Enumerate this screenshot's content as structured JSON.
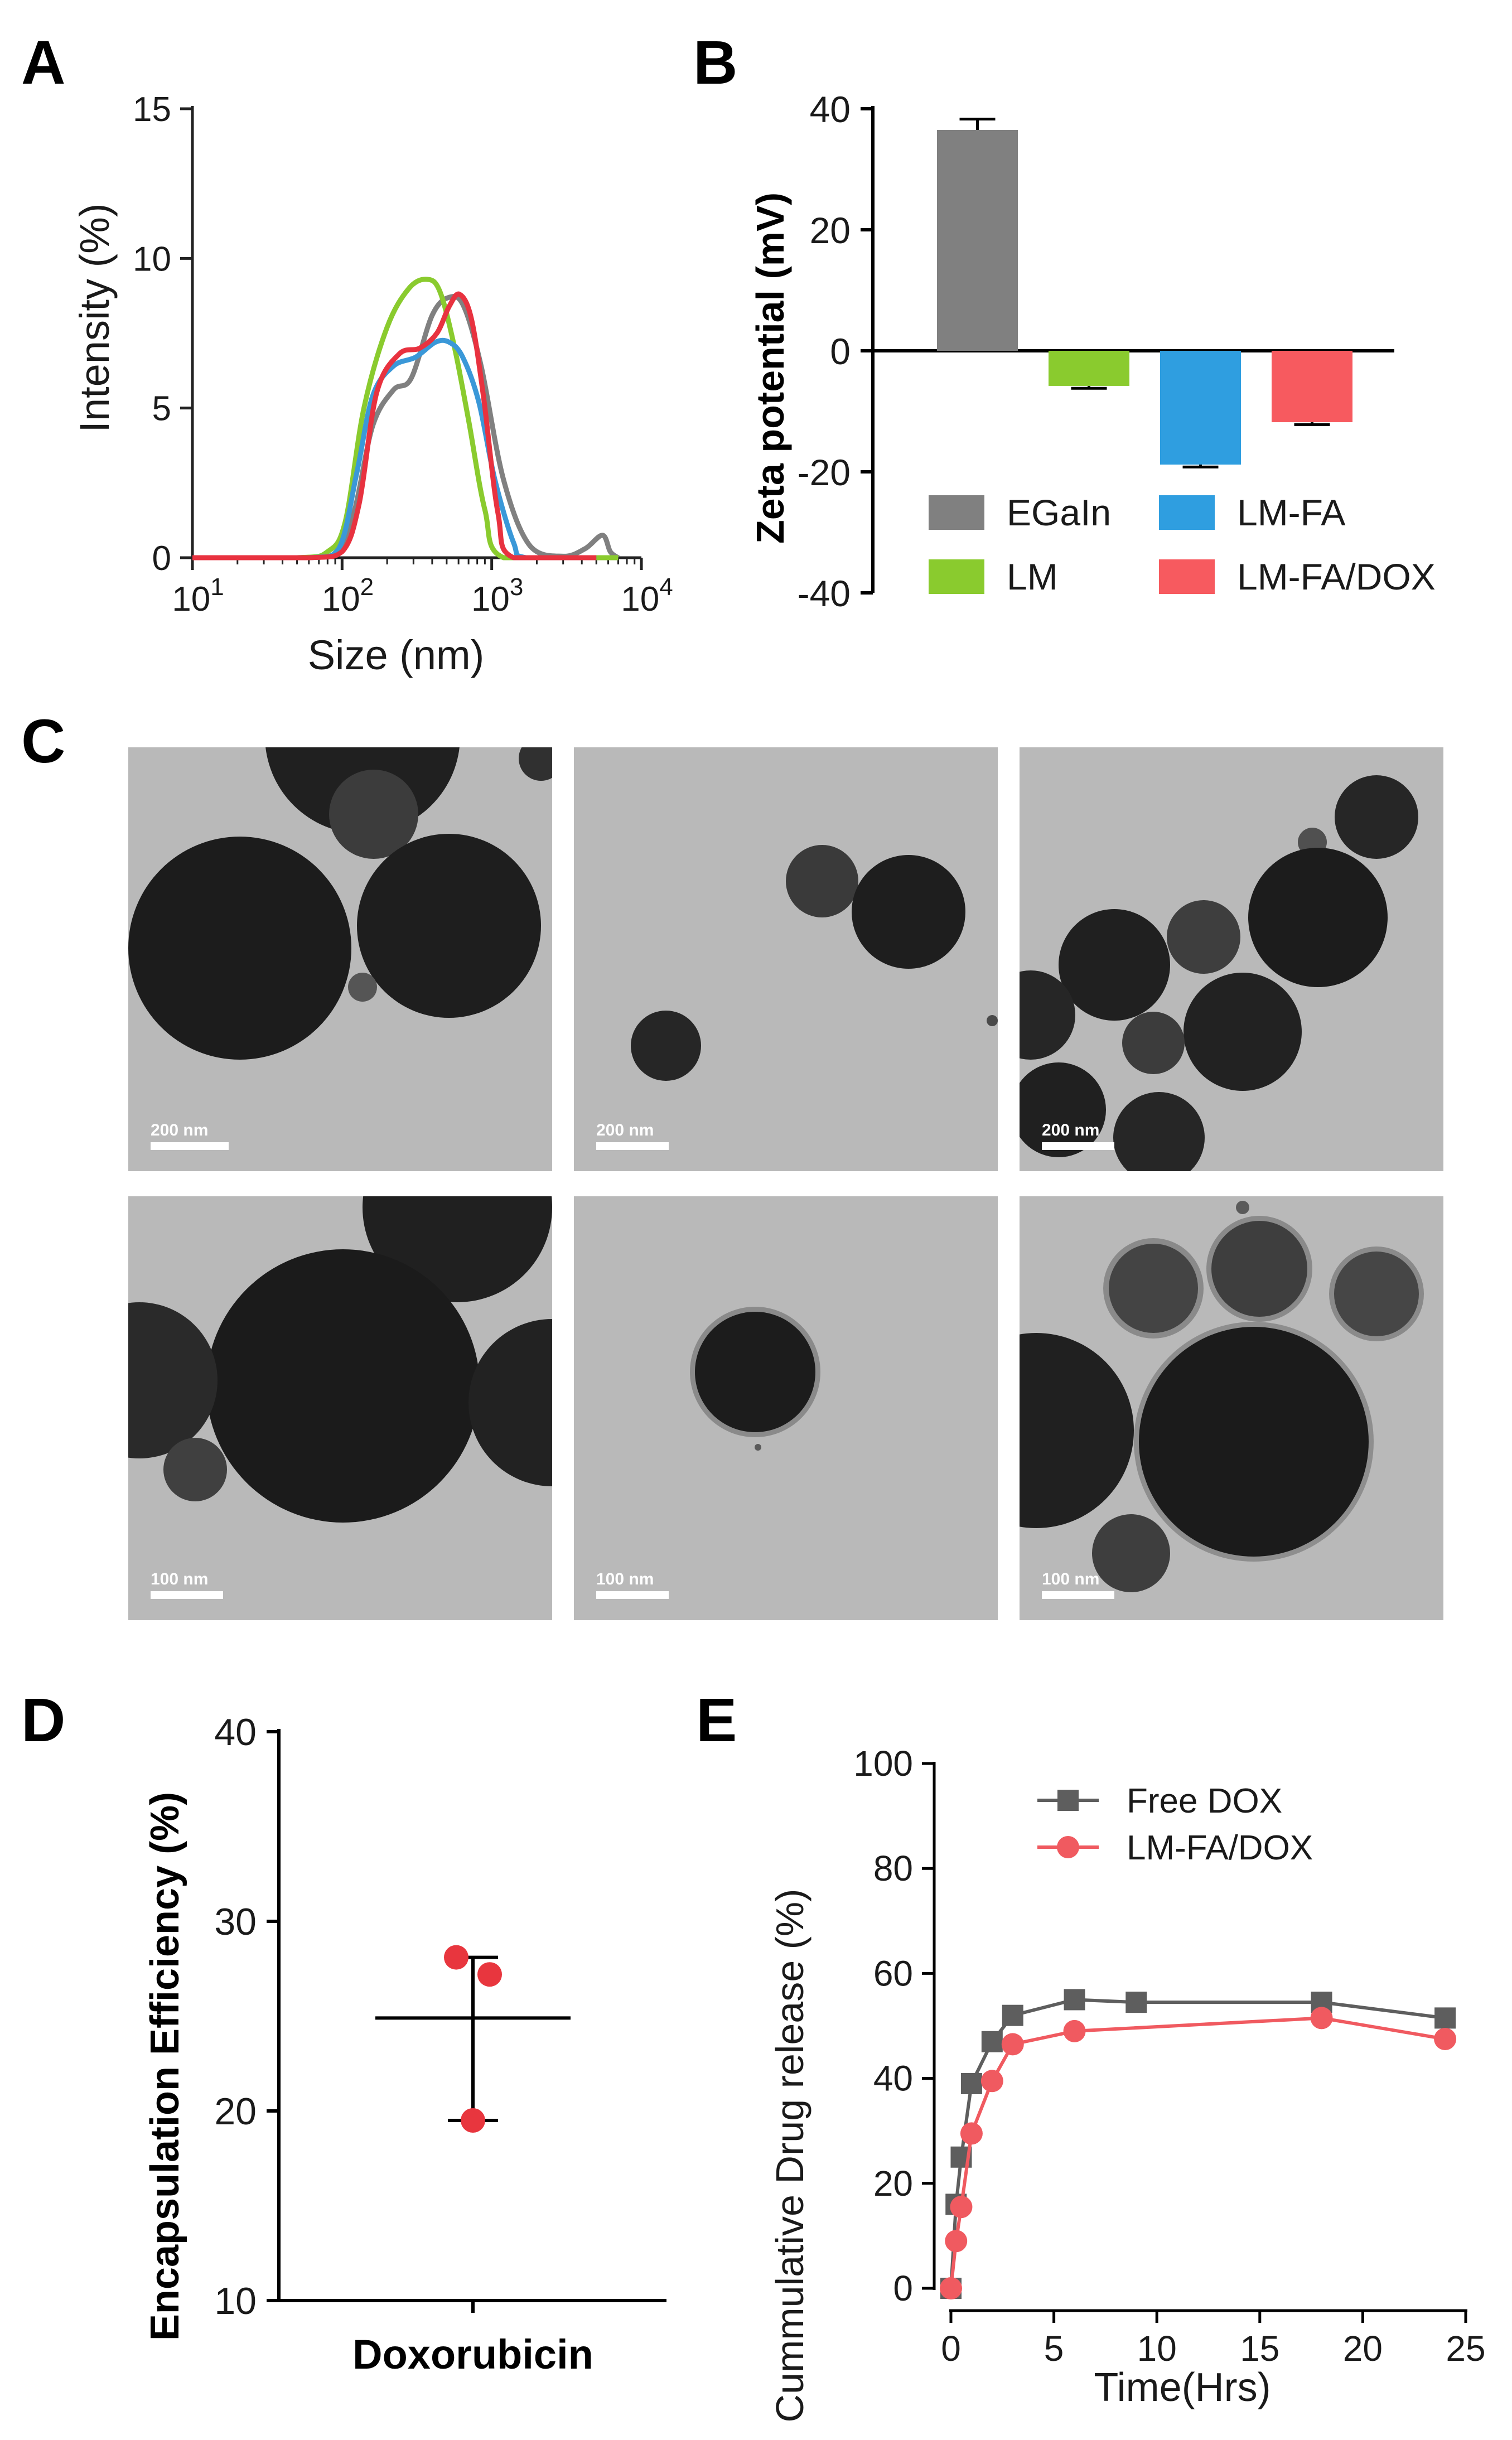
{
  "panels": {
    "a": {
      "letter": "A"
    },
    "b": {
      "letter": "B"
    },
    "c": {
      "letter": "C"
    },
    "d": {
      "letter": "D"
    },
    "e": {
      "letter": "E"
    }
  },
  "tem": {
    "scalebars": [
      "200 nm",
      "200 nm",
      "200 nm",
      "100 nm",
      "100 nm",
      "100 nm"
    ]
  },
  "chart_data": [
    {
      "panel": "A",
      "type": "line",
      "xlabel": "Size (nm)",
      "ylabel": "Intensity (%)",
      "xscale": "log",
      "xlim": [
        10,
        10000
      ],
      "ylim": [
        0,
        15
      ],
      "xticks": [
        {
          "value": 10,
          "base": "10",
          "exp": "1"
        },
        {
          "value": 100,
          "base": "10",
          "exp": "2"
        },
        {
          "value": 1000,
          "base": "10",
          "exp": "3"
        },
        {
          "value": 10000,
          "base": "10",
          "exp": "4"
        }
      ],
      "yticks": [
        "0",
        "5",
        "10",
        "15"
      ],
      "grid": false,
      "series": [
        {
          "color": "#808080",
          "x": [
            10,
            50,
            90,
            120,
            160,
            220,
            290,
            400,
            520,
            650,
            850,
            1200,
            1800,
            3000,
            4200,
            5500,
            6200,
            7000
          ],
          "y": [
            0,
            0,
            0.1,
            1.5,
            4.4,
            5.6,
            6.0,
            8.1,
            8.7,
            8.4,
            6.4,
            2.6,
            0.4,
            0.05,
            0.3,
            0.75,
            0.2,
            0
          ]
        },
        {
          "color": "#8acb2e",
          "x": [
            10,
            50,
            80,
            105,
            140,
            200,
            280,
            370,
            450,
            560,
            700,
            900,
            1200,
            5000,
            6000,
            7000
          ],
          "y": [
            0,
            0,
            0.2,
            1.2,
            5.0,
            7.7,
            9.0,
            9.3,
            8.9,
            7.1,
            4.6,
            1.6,
            0,
            0,
            0,
            0
          ]
        },
        {
          "color": "#3a98d8",
          "x": [
            10,
            60,
            95,
            125,
            160,
            220,
            310,
            420,
            520,
            640,
            820,
            1050,
            1400,
            1700,
            5000
          ],
          "y": [
            0,
            0,
            0.3,
            2.8,
            5.4,
            6.4,
            6.7,
            7.2,
            7.2,
            6.7,
            5.2,
            2.6,
            0.5,
            0,
            0
          ]
        },
        {
          "color": "#e8323f",
          "x": [
            10,
            60,
            100,
            130,
            170,
            240,
            330,
            430,
            520,
            610,
            730,
            880,
            1100,
            1400,
            5000
          ],
          "y": [
            0,
            0,
            0.2,
            1.8,
            5.5,
            6.8,
            7.0,
            7.5,
            8.4,
            8.8,
            8.0,
            5.4,
            1.5,
            0,
            0
          ]
        }
      ]
    },
    {
      "panel": "B",
      "type": "bar",
      "ylabel": "Zeta potential (mV)",
      "ylim": [
        -40,
        40
      ],
      "yticks": [
        "-40",
        "-20",
        "0",
        "20",
        "40"
      ],
      "grid": false,
      "legend_position": "bottom",
      "categories": [
        "EGaIn",
        "LM",
        "LM-FA",
        "LM-FA/DOX"
      ],
      "values": [
        36.5,
        -5.8,
        -18.8,
        -11.8
      ],
      "errors": [
        1.8,
        0.4,
        0.4,
        0.4
      ],
      "colors": [
        "#808080",
        "#8acb2e",
        "#2f9ee0",
        "#f75a5f"
      ]
    },
    {
      "panel": "D",
      "type": "scatter",
      "xlabel": "",
      "ylabel": "Encapsulation Efficiency (%)",
      "ylim": [
        10,
        40
      ],
      "yticks": [
        "10",
        "20",
        "30",
        "40"
      ],
      "grid": false,
      "categories": [
        "Doxorubicin"
      ],
      "points": [
        28.1,
        27.2,
        19.5
      ],
      "mean": 24.9,
      "sd_upper": 28.1,
      "sd_lower": 19.5,
      "point_color": "#e8363e"
    },
    {
      "panel": "E",
      "type": "line",
      "xlabel": "Time(Hrs)",
      "ylabel": "Cummulative Drug release (%)",
      "xlim": [
        0,
        25
      ],
      "ylim": [
        0,
        100
      ],
      "xticks": [
        "0",
        "5",
        "10",
        "15",
        "20",
        "25"
      ],
      "yticks": [
        "0",
        "20",
        "40",
        "60",
        "80",
        "100"
      ],
      "grid": false,
      "legend_position": "top-right",
      "series": [
        {
          "name": "Free DOX",
          "color": "#5e5e5e",
          "marker": "square",
          "x": [
            0,
            0.25,
            0.5,
            1,
            2,
            3,
            6,
            9,
            18,
            24
          ],
          "y": [
            0,
            16,
            25,
            39,
            47,
            52,
            55,
            54.5,
            54.5,
            51.5
          ]
        },
        {
          "name": "LM-FA/DOX",
          "color": "#f05a60",
          "marker": "circle",
          "x": [
            0,
            0.25,
            0.5,
            1,
            2,
            3,
            6,
            18,
            24
          ],
          "y": [
            0,
            9,
            15.5,
            29.5,
            39.5,
            46.5,
            49,
            51.5,
            47.5
          ]
        }
      ]
    }
  ]
}
